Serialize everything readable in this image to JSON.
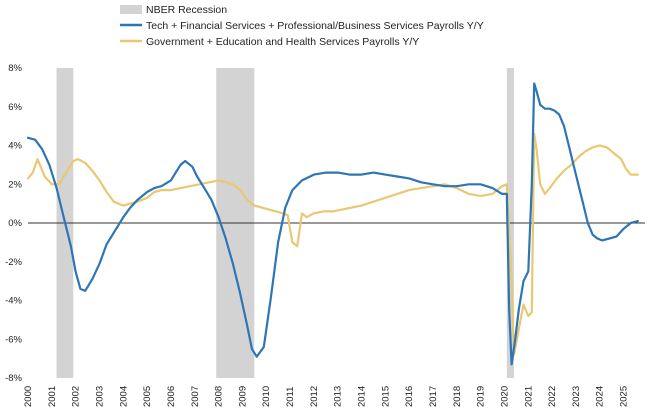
{
  "chart_data": {
    "type": "line",
    "title": "",
    "xlabel": "",
    "ylabel": "",
    "ylim": [
      -8,
      8
    ],
    "xlim": [
      2000,
      2025.9
    ],
    "yticks": [
      -8,
      -6,
      -4,
      -2,
      0,
      2,
      4,
      6,
      8
    ],
    "ytick_labels": [
      "-8%",
      "-6%",
      "-4%",
      "-2%",
      "0%",
      "2%",
      "4%",
      "6%",
      "8%"
    ],
    "xticks": [
      "2000",
      "2001",
      "2002",
      "2003",
      "2004",
      "2005",
      "2006",
      "2007",
      "2008",
      "2009",
      "2010",
      "2011",
      "2012",
      "2013",
      "2014",
      "2015",
      "2016",
      "2017",
      "2018",
      "2019",
      "2020",
      "2021",
      "2022",
      "2023",
      "2024",
      "2025"
    ],
    "legend_position": "top",
    "recessions": [
      {
        "start": 2001.2,
        "end": 2001.9
      },
      {
        "start": 2007.9,
        "end": 2009.5
      },
      {
        "start": 2020.1,
        "end": 2020.4
      }
    ],
    "recession_label": "NBER Recession",
    "recession_color": "#d3d3d3",
    "series": [
      {
        "name": "Tech + Financial Services + Professional/Business Services Payrolls Y/Y",
        "color": "#2e75b6",
        "x": [
          2000.0,
          2000.3,
          2000.6,
          2000.9,
          2001.2,
          2001.5,
          2001.8,
          2002.0,
          2002.2,
          2002.4,
          2002.7,
          2003.0,
          2003.3,
          2003.6,
          2004.0,
          2004.3,
          2004.6,
          2005.0,
          2005.3,
          2005.6,
          2006.0,
          2006.2,
          2006.4,
          2006.6,
          2006.9,
          2007.1,
          2007.4,
          2007.7,
          2008.0,
          2008.3,
          2008.6,
          2008.9,
          2009.2,
          2009.4,
          2009.6,
          2009.9,
          2010.2,
          2010.5,
          2010.8,
          2011.1,
          2011.5,
          2012.0,
          2012.5,
          2013.0,
          2013.5,
          2014.0,
          2014.5,
          2015.0,
          2015.5,
          2016.0,
          2016.5,
          2017.0,
          2017.5,
          2018.0,
          2018.5,
          2019.0,
          2019.5,
          2019.9,
          2020.1,
          2020.2,
          2020.3,
          2020.45,
          2020.6,
          2020.8,
          2021.0,
          2021.15,
          2021.25,
          2021.35,
          2021.5,
          2021.7,
          2021.9,
          2022.1,
          2022.3,
          2022.5,
          2022.7,
          2022.9,
          2023.1,
          2023.3,
          2023.5,
          2023.7,
          2023.9,
          2024.1,
          2024.4,
          2024.7,
          2025.0,
          2025.3,
          2025.6
        ],
        "values": [
          4.4,
          4.3,
          3.8,
          3.0,
          1.8,
          0.3,
          -1.2,
          -2.5,
          -3.4,
          -3.5,
          -2.9,
          -2.1,
          -1.1,
          -0.5,
          0.3,
          0.8,
          1.2,
          1.6,
          1.8,
          1.9,
          2.2,
          2.6,
          3.0,
          3.2,
          2.9,
          2.4,
          1.8,
          1.2,
          0.3,
          -0.8,
          -2.1,
          -3.6,
          -5.3,
          -6.5,
          -6.9,
          -6.4,
          -3.8,
          -1.0,
          0.8,
          1.7,
          2.2,
          2.5,
          2.6,
          2.6,
          2.5,
          2.5,
          2.6,
          2.5,
          2.4,
          2.3,
          2.1,
          2.0,
          1.9,
          1.9,
          2.0,
          2.0,
          1.8,
          1.5,
          1.5,
          -4.5,
          -7.3,
          -6.0,
          -4.5,
          -3.0,
          -2.5,
          2.0,
          7.2,
          6.8,
          6.1,
          5.9,
          5.9,
          5.8,
          5.6,
          5.0,
          4.0,
          3.0,
          2.0,
          1.0,
          0.0,
          -0.6,
          -0.8,
          -0.9,
          -0.8,
          -0.7,
          -0.3,
          0.0,
          0.1
        ]
      },
      {
        "name": "Government + Education and Health Services Payrolls Y/Y",
        "color": "#e8c872",
        "x": [
          2000.0,
          2000.2,
          2000.4,
          2000.7,
          2001.0,
          2001.3,
          2001.6,
          2001.9,
          2002.1,
          2002.4,
          2002.7,
          2003.0,
          2003.3,
          2003.6,
          2004.0,
          2004.3,
          2004.6,
          2005.0,
          2005.3,
          2005.6,
          2006.0,
          2006.4,
          2006.8,
          2007.2,
          2007.6,
          2008.0,
          2008.3,
          2008.6,
          2008.9,
          2009.2,
          2009.5,
          2009.8,
          2010.1,
          2010.4,
          2010.7,
          2010.9,
          2011.1,
          2011.3,
          2011.5,
          2011.7,
          2012.0,
          2012.4,
          2012.8,
          2013.2,
          2013.6,
          2014.0,
          2014.5,
          2015.0,
          2015.5,
          2016.0,
          2016.5,
          2017.0,
          2017.5,
          2018.0,
          2018.5,
          2019.0,
          2019.5,
          2019.9,
          2020.1,
          2020.3,
          2020.4,
          2020.6,
          2020.8,
          2021.0,
          2021.15,
          2021.25,
          2021.35,
          2021.5,
          2021.7,
          2021.9,
          2022.2,
          2022.5,
          2022.8,
          2023.1,
          2023.4,
          2023.7,
          2024.0,
          2024.3,
          2024.6,
          2024.9,
          2025.1,
          2025.3,
          2025.6
        ],
        "values": [
          2.3,
          2.6,
          3.3,
          2.4,
          2.0,
          2.0,
          2.6,
          3.2,
          3.3,
          3.1,
          2.7,
          2.2,
          1.6,
          1.1,
          0.9,
          1.0,
          1.1,
          1.3,
          1.6,
          1.7,
          1.7,
          1.8,
          1.9,
          2.0,
          2.1,
          2.2,
          2.1,
          2.0,
          1.7,
          1.2,
          0.9,
          0.8,
          0.7,
          0.6,
          0.5,
          0.4,
          -1.0,
          -1.2,
          0.5,
          0.3,
          0.5,
          0.6,
          0.6,
          0.7,
          0.8,
          0.9,
          1.1,
          1.3,
          1.5,
          1.7,
          1.8,
          1.9,
          2.0,
          1.8,
          1.5,
          1.4,
          1.5,
          1.9,
          2.0,
          -3.0,
          -6.8,
          -5.5,
          -4.2,
          -4.8,
          -4.6,
          4.6,
          3.8,
          2.0,
          1.5,
          1.8,
          2.3,
          2.7,
          3.0,
          3.4,
          3.7,
          3.9,
          4.0,
          3.9,
          3.6,
          3.3,
          2.8,
          2.5,
          2.5
        ]
      }
    ]
  }
}
